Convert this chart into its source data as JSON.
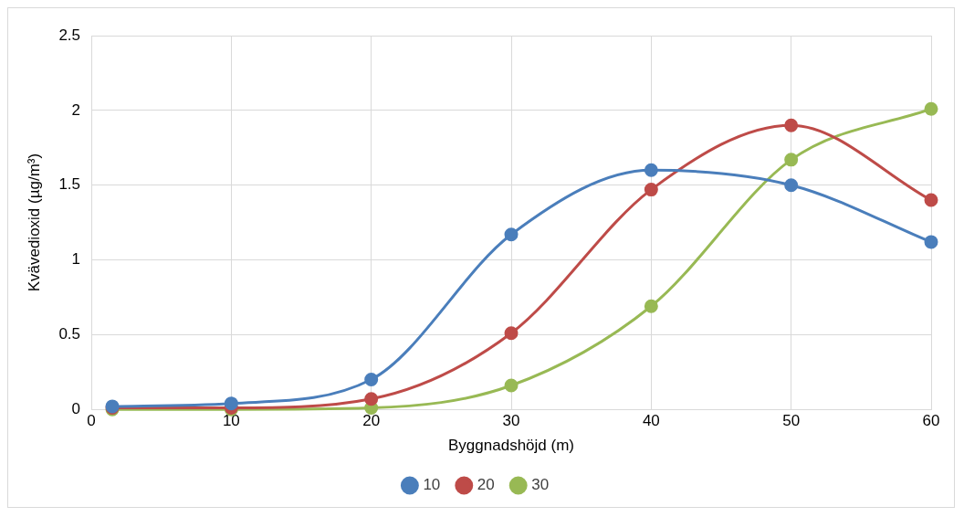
{
  "chart_data": {
    "type": "line",
    "xlabel": "Byggnadshöjd (m)",
    "ylabel": "Kvävedioxid (µg/m³)",
    "x": [
      1.5,
      10,
      20,
      30,
      40,
      50,
      60
    ],
    "series": [
      {
        "name": "10",
        "color": "#4a7ebb",
        "values": [
          0.02,
          0.04,
          0.2,
          1.17,
          1.6,
          1.5,
          1.12
        ]
      },
      {
        "name": "20",
        "color": "#be4b48",
        "values": [
          0.01,
          0.01,
          0.07,
          0.51,
          1.47,
          1.9,
          1.4
        ]
      },
      {
        "name": "30",
        "color": "#98b954",
        "values": [
          0,
          0,
          0.01,
          0.16,
          0.69,
          1.67,
          2.01
        ]
      }
    ],
    "xlim": [
      0,
      60
    ],
    "xticks": [
      0,
      10,
      20,
      30,
      40,
      50,
      60
    ],
    "ylim": [
      0,
      2.5
    ],
    "yticks": [
      0,
      0.5,
      1,
      1.5,
      2,
      2.5
    ],
    "grid": true,
    "legend": "bottom",
    "marker": "circle",
    "line_style": "solid"
  }
}
